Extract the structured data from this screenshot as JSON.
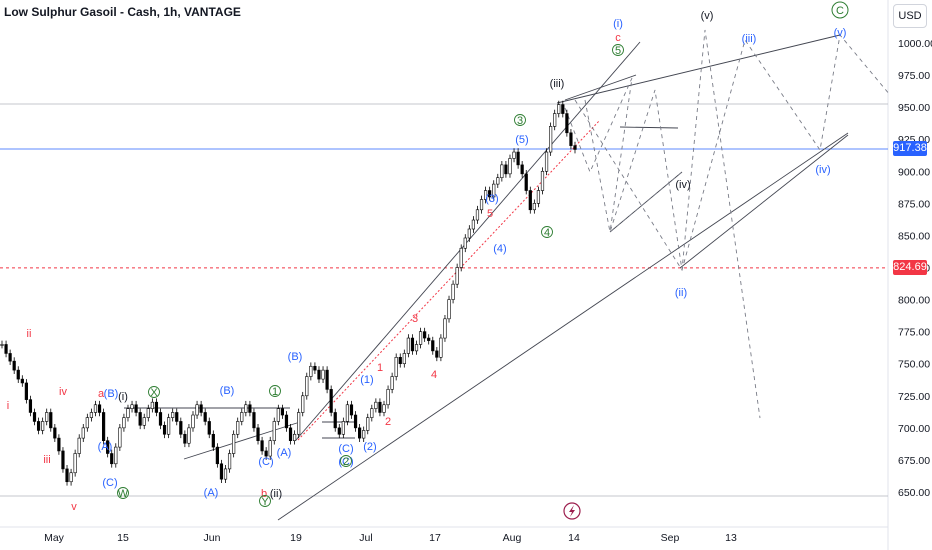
{
  "header": {
    "title": "Low Sulphur Gasoil - Cash, 1h, VANTAGE",
    "currency": "USD"
  },
  "price_tags": {
    "current": "917.38",
    "level": "824.69"
  },
  "colors": {
    "current_line": "#2962ff",
    "level_line": "#f23645",
    "candle": "#000000"
  },
  "icons": {
    "event_marker": "lightning-icon"
  },
  "chart_data": {
    "type": "candlestick",
    "title": "Low Sulphur Gasoil - Cash, 1h, VANTAGE",
    "y_axis": {
      "ticks": [
        650,
        675,
        700,
        725,
        750,
        775,
        800,
        825,
        850,
        875,
        900,
        925,
        950,
        975,
        1000
      ],
      "ylim": [
        640,
        1020
      ],
      "position": "right"
    },
    "x_axis": {
      "labels": [
        "May",
        "15",
        "Jun",
        "19",
        "Jul",
        "17",
        "Aug",
        "14",
        "Sep",
        "13"
      ]
    },
    "price_line": 917.38,
    "level_line": 824.69,
    "series": [
      {
        "values": [
          765,
          758,
          752,
          745,
          738,
          735,
          722,
          712,
          705,
          698,
          705,
          712,
          700,
          692,
          682,
          668,
          658,
          665,
          680,
          692,
          700,
          708,
          712,
          718,
          712,
          690,
          680,
          672,
          685,
          700,
          708,
          715,
          718,
          712,
          702,
          708,
          715,
          720,
          712,
          702,
          695,
          708,
          712,
          705,
          695,
          688,
          700,
          710,
          718,
          712,
          705,
          695,
          685,
          672,
          660,
          668,
          680,
          695,
          705,
          712,
          718,
          712,
          700,
          690,
          682,
          678,
          690,
          705,
          715,
          710,
          700,
          690,
          695,
          712,
          725,
          740,
          748,
          745,
          738,
          745,
          730,
          712,
          700,
          695,
          705,
          718,
          710,
          700,
          692,
          698,
          708,
          715,
          720,
          712,
          718,
          730,
          740,
          755,
          750,
          758,
          770,
          760,
          765,
          775,
          770,
          768,
          760,
          755,
          770,
          785,
          800,
          812,
          825,
          840,
          848,
          855,
          862,
          870,
          878,
          885,
          880,
          890,
          895,
          905,
          898,
          910,
          915,
          905,
          898,
          885,
          870,
          875,
          885,
          900,
          915,
          935,
          945,
          952,
          945,
          930,
          920,
          917
        ]
      }
    ],
    "wave_labels": [
      "ii",
      "iv",
      "i",
      "iii",
      "v",
      "a",
      "b",
      "(B)",
      "(A)",
      "(C)",
      "(i)",
      "(ii)",
      "X",
      "W",
      "Y",
      "(B)",
      "(A)",
      "(C)",
      "(B)",
      "(A)",
      "(C)",
      "1",
      "(1)",
      "(2)",
      "(C)",
      "2",
      "1",
      "2",
      "3",
      "4",
      "5",
      "(3)",
      "(4)",
      "(5)",
      "3",
      "4",
      "5",
      "(iii)",
      "c",
      "(i)",
      "(iv)",
      "(ii)",
      "(v)",
      "(iii)",
      "(iv)",
      "(v)",
      "C"
    ]
  }
}
